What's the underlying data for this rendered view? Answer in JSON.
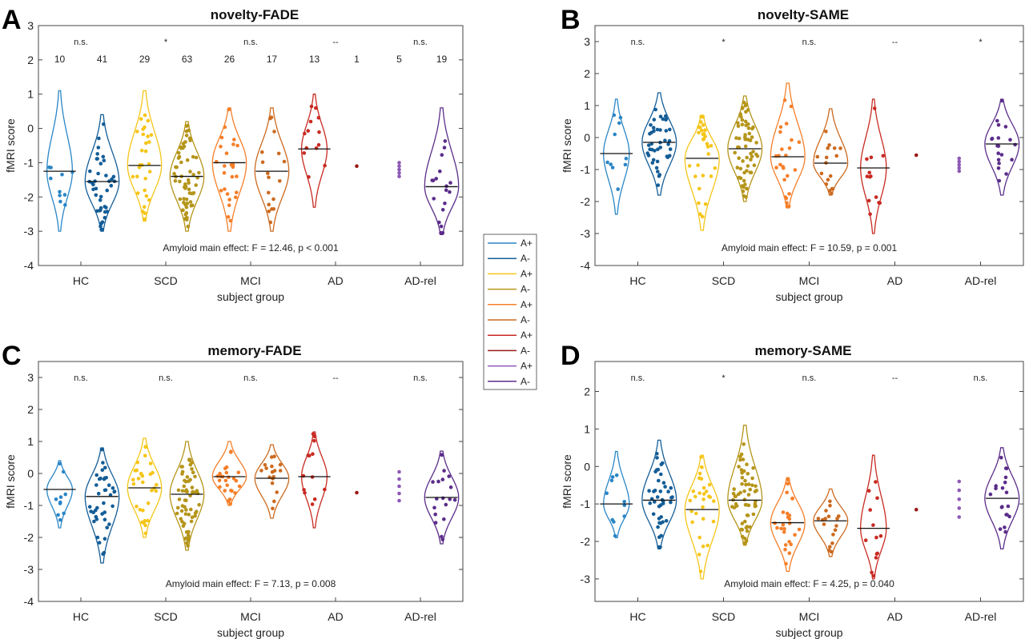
{
  "legend": {
    "entries": [
      {
        "label": "A+",
        "color": "#2a86c6"
      },
      {
        "label": "A-",
        "color": "#135d97"
      },
      {
        "label": "A+",
        "color": "#f5c518"
      },
      {
        "label": "A-",
        "color": "#b5951a"
      },
      {
        "label": "A+",
        "color": "#f57f2a"
      },
      {
        "label": "A-",
        "color": "#cc6a1f"
      },
      {
        "label": "A+",
        "color": "#c82a22"
      },
      {
        "label": "A-",
        "color": "#9a1a18"
      },
      {
        "label": "A+",
        "color": "#8c59b6"
      },
      {
        "label": "A-",
        "color": "#5b2d8a"
      }
    ]
  },
  "chart_data": [
    {
      "type": "violin",
      "panel_label": "A",
      "title": "novelty-FADE",
      "xlabel": "subject group",
      "ylabel": "fMRI score",
      "ylim": [
        -4,
        3
      ],
      "yticks": [
        "-4",
        "-3",
        "-2",
        "-1",
        "0",
        "1",
        "2",
        "3"
      ],
      "categories": [
        "HC",
        "SCD",
        "MCI",
        "AD",
        "AD-rel"
      ],
      "significance": [
        "n.s.",
        "*",
        "n.s.",
        "--",
        "n.s."
      ],
      "counts": [
        "10",
        "41",
        "29",
        "63",
        "26",
        "17",
        "13",
        "1",
        "5",
        "19"
      ],
      "annotation": "Amyloid main effect: F = 12.46, p < 0.001",
      "medians": [
        -1.25,
        -1.55,
        -1.08,
        -1.4,
        -1.0,
        -1.25,
        -0.6,
        -1.1,
        -1.2,
        -1.7
      ],
      "ranges": [
        [
          -3.0,
          1.1
        ],
        [
          -3.0,
          0.4
        ],
        [
          -2.7,
          1.1
        ],
        [
          -3.0,
          0.2
        ],
        [
          -3.0,
          0.6
        ],
        [
          -3.0,
          0.6
        ],
        [
          -2.3,
          1.0
        ],
        [
          -1.1,
          -1.1
        ],
        [
          -1.4,
          -1.0
        ],
        [
          -3.1,
          0.6
        ]
      ]
    },
    {
      "type": "violin",
      "panel_label": "B",
      "title": "novelty-SAME",
      "xlabel": "subject group",
      "ylabel": "fMRI score",
      "ylim": [
        -4,
        3.5
      ],
      "yticks": [
        "-4",
        "-3",
        "-2",
        "-1",
        "0",
        "1",
        "2",
        "3"
      ],
      "categories": [
        "HC",
        "SCD",
        "MCI",
        "AD",
        "AD-rel"
      ],
      "significance": [
        "n.s.",
        "*",
        "n.s.",
        "--",
        "*"
      ],
      "counts": [],
      "annotation": "Amyloid main effect: F = 10.59, p = 0.001",
      "medians": [
        -0.5,
        -0.15,
        -0.65,
        -0.35,
        -0.6,
        -0.8,
        -0.95,
        -0.55,
        -0.85,
        -0.2
      ],
      "ranges": [
        [
          -2.4,
          1.2
        ],
        [
          -1.8,
          1.4
        ],
        [
          -2.9,
          0.7
        ],
        [
          -2.0,
          1.3
        ],
        [
          -2.2,
          1.7
        ],
        [
          -1.8,
          0.9
        ],
        [
          -3.0,
          1.2
        ],
        [
          -0.55,
          -0.55
        ],
        [
          -1.05,
          -0.65
        ],
        [
          -1.8,
          1.2
        ]
      ]
    },
    {
      "type": "violin",
      "panel_label": "C",
      "title": "memory-FADE",
      "xlabel": "subject group",
      "ylabel": "fMRI score",
      "ylim": [
        -4,
        3.5
      ],
      "yticks": [
        "-4",
        "-3",
        "-2",
        "-1",
        "0",
        "1",
        "2",
        "3"
      ],
      "categories": [
        "HC",
        "SCD",
        "MCI",
        "AD",
        "AD-rel"
      ],
      "significance": [
        "n.s.",
        "n.s.",
        "n.s.",
        "--",
        "n.s."
      ],
      "counts": [],
      "annotation": "Amyloid main effect: F = 7.13, p = 0.008",
      "medians": [
        -0.5,
        -0.72,
        -0.45,
        -0.65,
        -0.1,
        -0.15,
        -0.1,
        -0.6,
        -0.6,
        -0.75
      ],
      "ranges": [
        [
          -1.7,
          0.4
        ],
        [
          -2.8,
          0.8
        ],
        [
          -2.0,
          1.1
        ],
        [
          -2.4,
          1.0
        ],
        [
          -1.0,
          1.0
        ],
        [
          -1.4,
          0.9
        ],
        [
          -1.7,
          1.3
        ],
        [
          -0.6,
          -0.6
        ],
        [
          -0.85,
          0.05
        ],
        [
          -2.2,
          0.7
        ]
      ]
    },
    {
      "type": "violin",
      "panel_label": "D",
      "title": "memory-SAME",
      "xlabel": "subject group",
      "ylabel": "fMRI score",
      "ylim": [
        -3.6,
        2.8
      ],
      "yticks": [
        "-3",
        "-2",
        "-1",
        "0",
        "1",
        "2"
      ],
      "categories": [
        "HC",
        "SCD",
        "MCI",
        "AD",
        "AD-rel"
      ],
      "significance": [
        "n.s.",
        "*",
        "n.s.",
        "--",
        "n.s."
      ],
      "counts": [],
      "annotation": "Amyloid main effect: F = 4.25, p = 0.040",
      "medians": [
        -1.0,
        -0.9,
        -1.15,
        -0.9,
        -1.5,
        -1.45,
        -1.65,
        -1.15,
        -1.0,
        -0.85
      ],
      "ranges": [
        [
          -1.9,
          0.4
        ],
        [
          -2.2,
          0.7
        ],
        [
          -3.0,
          0.3
        ],
        [
          -2.1,
          1.1
        ],
        [
          -2.8,
          -0.3
        ],
        [
          -2.4,
          -0.6
        ],
        [
          -3.0,
          0.3
        ],
        [
          -1.15,
          -1.15
        ],
        [
          -1.35,
          -0.4
        ],
        [
          -2.2,
          0.5
        ]
      ]
    }
  ]
}
